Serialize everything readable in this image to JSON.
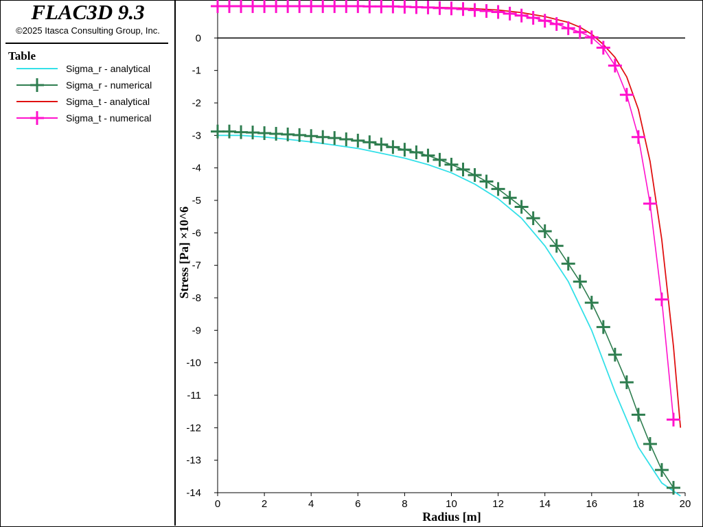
{
  "app": {
    "title": "FLAC3D 9.3",
    "copyright": "©2025 Itasca Consulting Group, Inc."
  },
  "legend": {
    "heading": "Table",
    "items": [
      {
        "label": "Sigma_r - analytical",
        "color": "#33e0e8",
        "marker": false
      },
      {
        "label": "Sigma_r - numerical",
        "color": "#2e7d4f",
        "marker": true
      },
      {
        "label": "Sigma_t - analytical",
        "color": "#e01010",
        "marker": false
      },
      {
        "label": "Sigma_t - numerical",
        "color": "#ff10cc",
        "marker": true
      }
    ]
  },
  "chart_data": {
    "type": "line",
    "xlabel": "Radius [m]",
    "ylabel": "Stress [Pa] ×10^6",
    "xlim": [
      0,
      20
    ],
    "ylim": [
      -14,
      1
    ],
    "xticks": [
      0,
      2,
      4,
      6,
      8,
      10,
      12,
      14,
      16,
      18,
      20
    ],
    "yticks": [
      0,
      -1,
      -2,
      -3,
      -4,
      -5,
      -6,
      -7,
      -8,
      -9,
      -10,
      -11,
      -12,
      -13,
      -14
    ],
    "reference_line_y": 0,
    "series": [
      {
        "name": "Sigma_r - analytical",
        "color": "#33e0e8",
        "marker": false,
        "x": [
          0,
          1,
          2,
          3,
          4,
          5,
          6,
          7,
          8,
          9,
          10,
          11,
          12,
          13,
          14,
          15,
          16,
          17,
          18,
          19,
          19.8
        ],
        "y": [
          -3.0,
          -3.0,
          -3.05,
          -3.12,
          -3.2,
          -3.3,
          -3.4,
          -3.55,
          -3.7,
          -3.9,
          -4.15,
          -4.5,
          -4.95,
          -5.55,
          -6.4,
          -7.5,
          -9.0,
          -10.9,
          -12.6,
          -13.7,
          -14.1
        ]
      },
      {
        "name": "Sigma_r - numerical",
        "color": "#2e7d4f",
        "marker": true,
        "x": [
          0,
          0.5,
          1,
          1.5,
          2,
          2.5,
          3,
          3.5,
          4,
          4.5,
          5,
          5.5,
          6,
          6.5,
          7,
          7.5,
          8,
          8.5,
          9,
          9.5,
          10,
          10.5,
          11,
          11.5,
          12,
          12.5,
          13,
          13.5,
          14,
          14.5,
          15,
          15.5,
          16,
          16.5,
          17,
          17.5,
          18,
          18.5,
          19,
          19.5
        ],
        "y": [
          -2.88,
          -2.88,
          -2.9,
          -2.91,
          -2.93,
          -2.95,
          -2.97,
          -2.99,
          -3.02,
          -3.05,
          -3.08,
          -3.12,
          -3.16,
          -3.21,
          -3.28,
          -3.36,
          -3.44,
          -3.52,
          -3.62,
          -3.75,
          -3.9,
          -4.05,
          -4.22,
          -4.42,
          -4.65,
          -4.92,
          -5.2,
          -5.55,
          -5.95,
          -6.4,
          -6.95,
          -7.5,
          -8.15,
          -8.9,
          -9.75,
          -10.6,
          -11.6,
          -12.5,
          -13.3,
          -13.85
        ]
      },
      {
        "name": "Sigma_t - analytical",
        "color": "#e01010",
        "marker": false,
        "x": [
          0,
          2,
          4,
          6,
          8,
          9,
          10,
          11,
          12,
          13,
          14,
          15,
          15.5,
          16,
          16.5,
          17,
          17.5,
          18,
          18.5,
          19,
          19.5,
          19.8
        ],
        "y": [
          0.97,
          0.97,
          0.97,
          0.97,
          0.96,
          0.95,
          0.93,
          0.9,
          0.86,
          0.78,
          0.66,
          0.48,
          0.33,
          0.12,
          -0.2,
          -0.6,
          -1.2,
          -2.2,
          -3.8,
          -6.2,
          -9.5,
          -12.0
        ]
      },
      {
        "name": "Sigma_t - numerical",
        "color": "#ff10cc",
        "marker": true,
        "x": [
          0,
          0.5,
          1,
          1.5,
          2,
          2.5,
          3,
          3.5,
          4,
          4.5,
          5,
          5.5,
          6,
          6.5,
          7,
          7.5,
          8,
          8.5,
          9,
          9.5,
          10,
          10.5,
          11,
          11.5,
          12,
          12.5,
          13,
          13.5,
          14,
          14.5,
          15,
          15.5,
          16,
          16.5,
          17,
          17.5,
          18,
          18.5,
          19,
          19.5
        ],
        "y": [
          0.98,
          0.98,
          0.98,
          0.98,
          0.98,
          0.98,
          0.98,
          0.98,
          0.98,
          0.98,
          0.98,
          0.98,
          0.98,
          0.97,
          0.97,
          0.97,
          0.96,
          0.95,
          0.94,
          0.92,
          0.91,
          0.89,
          0.86,
          0.83,
          0.8,
          0.75,
          0.69,
          0.62,
          0.53,
          0.43,
          0.3,
          0.18,
          0.02,
          -0.3,
          -0.85,
          -1.75,
          -3.05,
          -5.1,
          -8.05,
          -11.75
        ]
      }
    ]
  }
}
